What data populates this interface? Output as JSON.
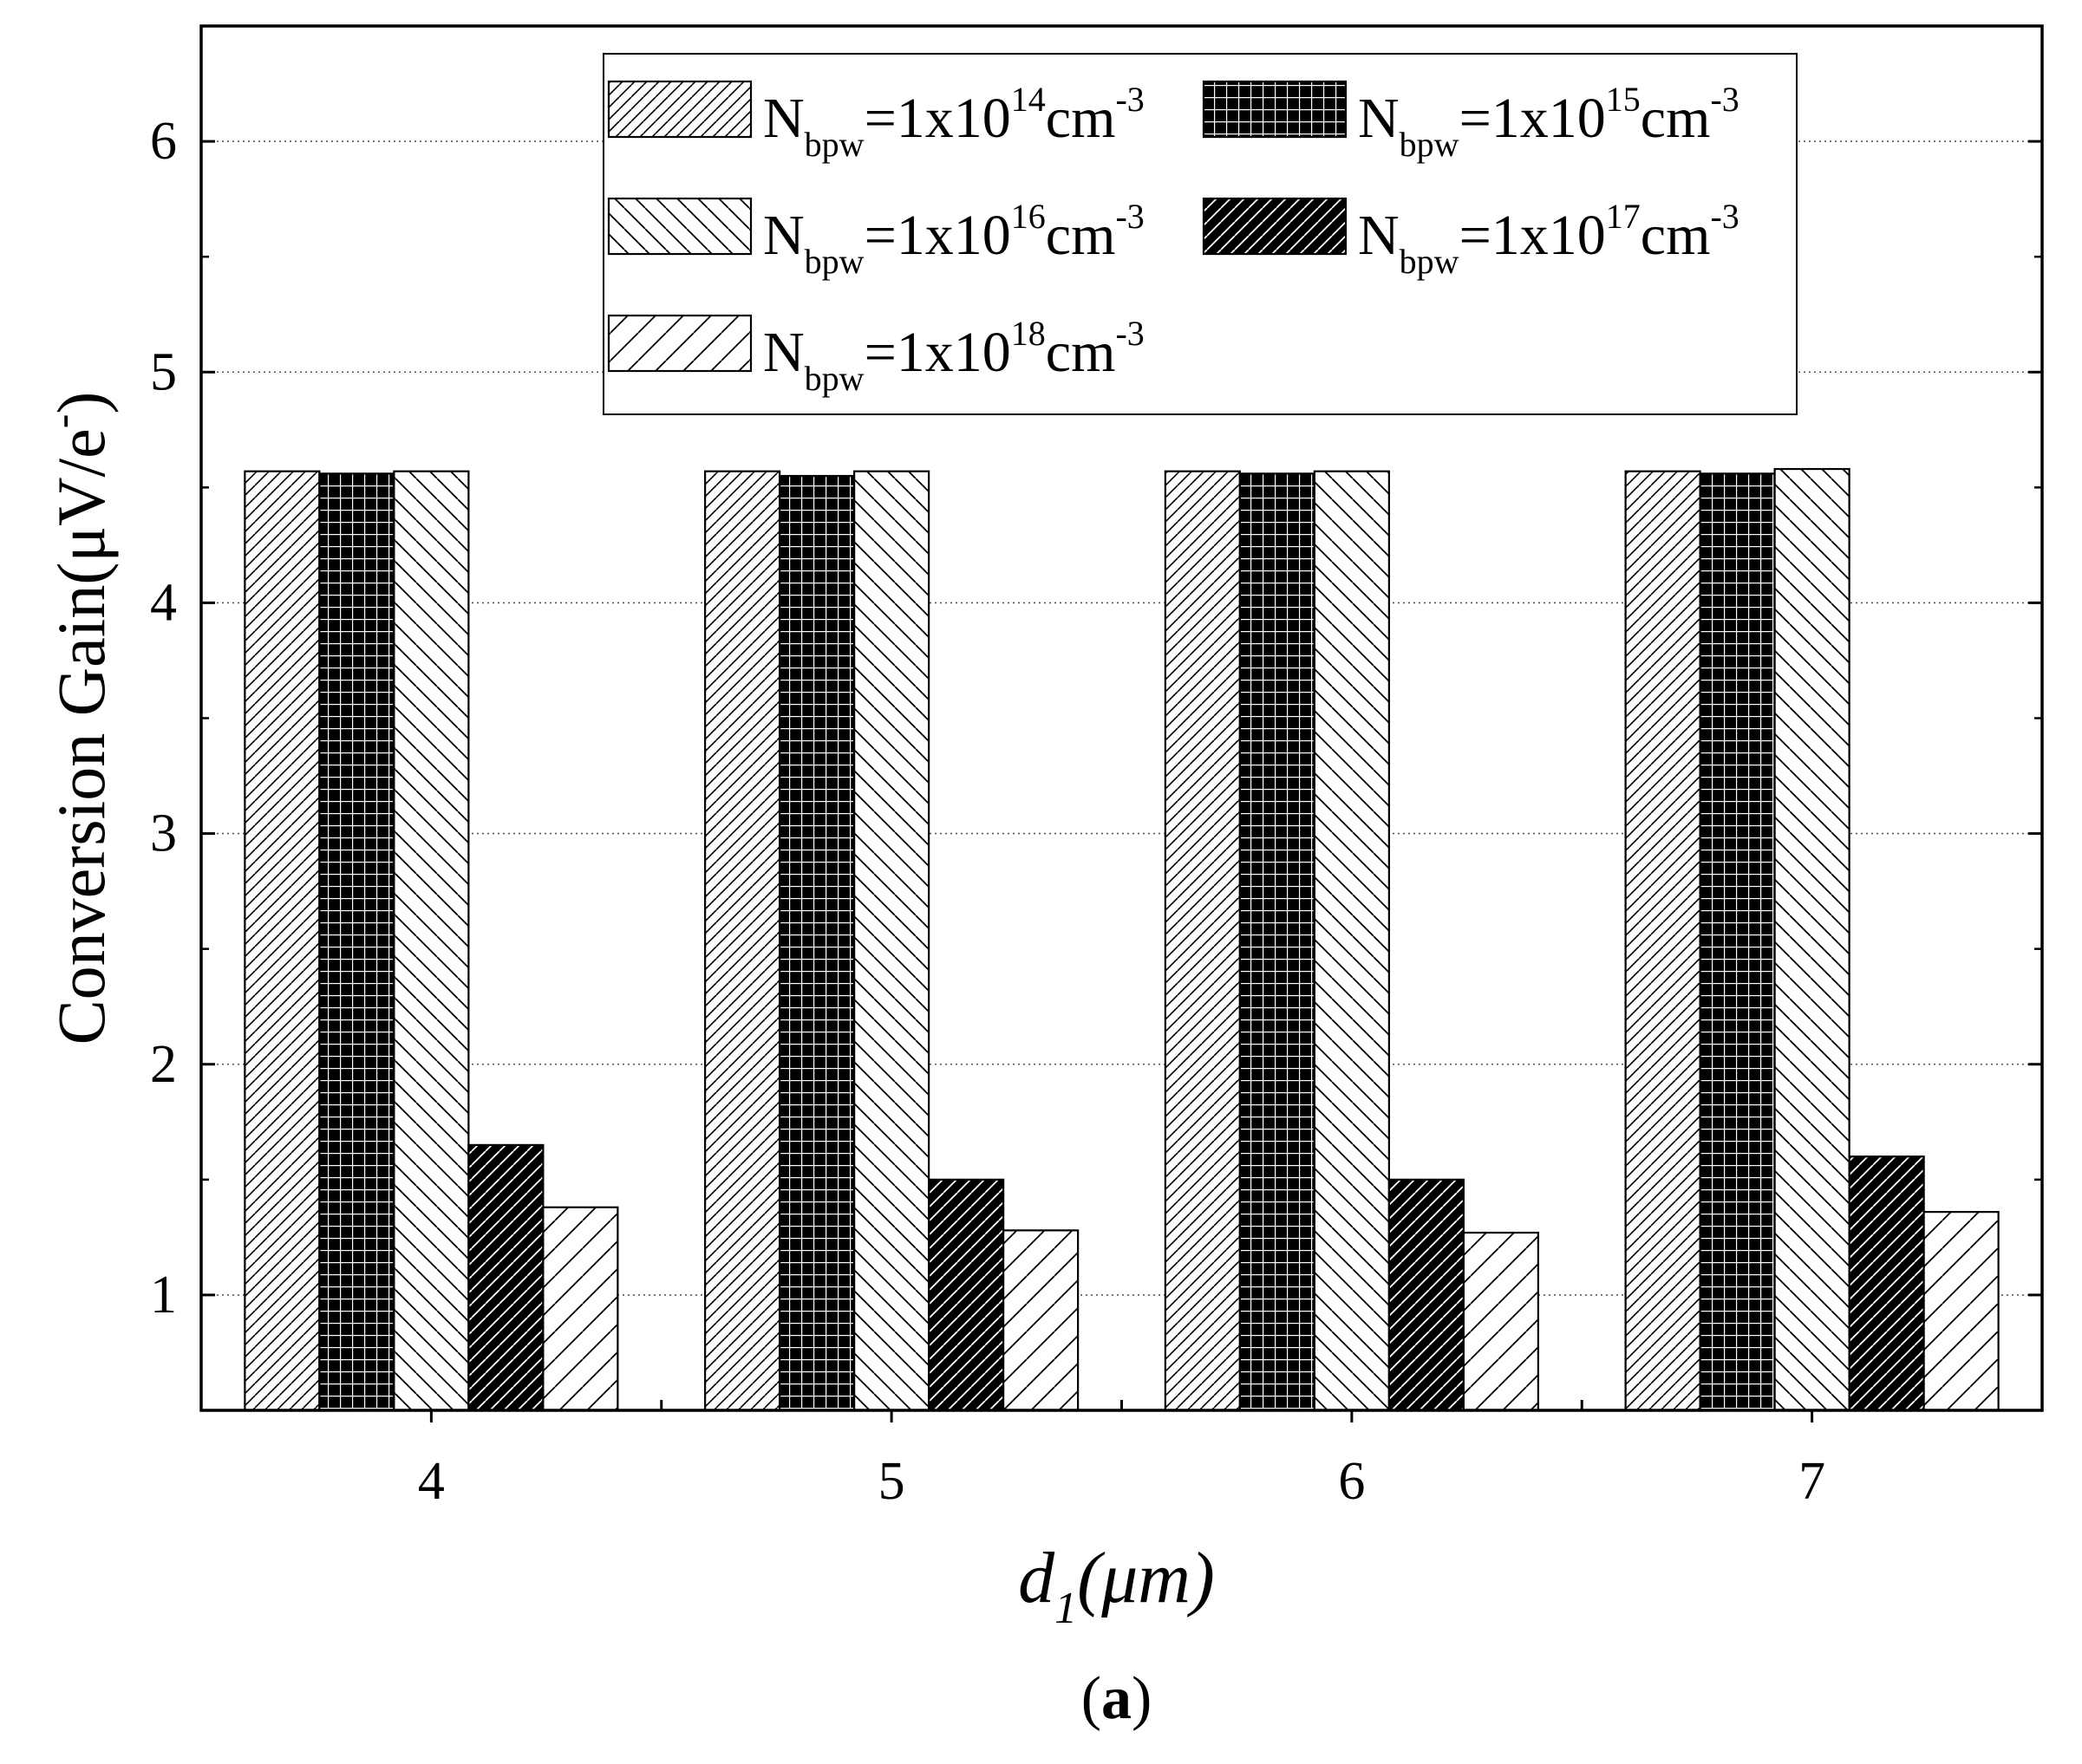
{
  "chart_data": {
    "type": "bar",
    "panel_label": "a",
    "categories": [
      "4",
      "5",
      "6",
      "7"
    ],
    "series": [
      {
        "name": "N_bpw=1x10^14 cm^-3",
        "label": {
          "base": "N",
          "sub": "bpw",
          "mid": "=1x10",
          "exp": "14",
          "unit": "cm",
          "unit_exp": "-3"
        },
        "pattern": "fine-diagonal-up",
        "values": [
          4.57,
          4.57,
          4.57,
          4.57
        ]
      },
      {
        "name": "N_bpw=1x10^15 cm^-3",
        "label": {
          "base": "N",
          "sub": "bpw",
          "mid": "=1x10",
          "exp": "15",
          "unit": "cm",
          "unit_exp": "-3"
        },
        "pattern": "black-grid",
        "values": [
          4.56,
          4.55,
          4.56,
          4.56
        ]
      },
      {
        "name": "N_bpw=1x10^16 cm^-3",
        "label": {
          "base": "N",
          "sub": "bpw",
          "mid": "=1x10",
          "exp": "16",
          "unit": "cm",
          "unit_exp": "-3"
        },
        "pattern": "diagonal-down",
        "values": [
          4.57,
          4.57,
          4.57,
          4.58
        ]
      },
      {
        "name": "N_bpw=1x10^17 cm^-3",
        "label": {
          "base": "N",
          "sub": "bpw",
          "mid": "=1x10",
          "exp": "17",
          "unit": "cm",
          "unit_exp": "-3"
        },
        "pattern": "black-diagonal-up",
        "values": [
          1.65,
          1.5,
          1.5,
          1.6
        ]
      },
      {
        "name": "N_bpw=1x10^18 cm^-3",
        "label": {
          "base": "N",
          "sub": "bpw",
          "mid": "=1x10",
          "exp": "18",
          "unit": "cm",
          "unit_exp": "-3"
        },
        "pattern": "wide-diagonal-up",
        "values": [
          1.38,
          1.28,
          1.27,
          1.36
        ]
      }
    ],
    "ylim": [
      0.5,
      6.5
    ],
    "y_ticks": [
      1,
      2,
      3,
      4,
      5,
      6
    ],
    "ylabel": {
      "text": "Conversion Gain(μV/e",
      "sup": "-",
      "close": ")"
    },
    "xlabel": {
      "text": "d",
      "sub": "1",
      "unit": "(μm)"
    },
    "grid": true,
    "legend": "top-center",
    "colors": {
      "background": "#ffffff",
      "ink": "#000000",
      "grid": "#555555"
    }
  }
}
